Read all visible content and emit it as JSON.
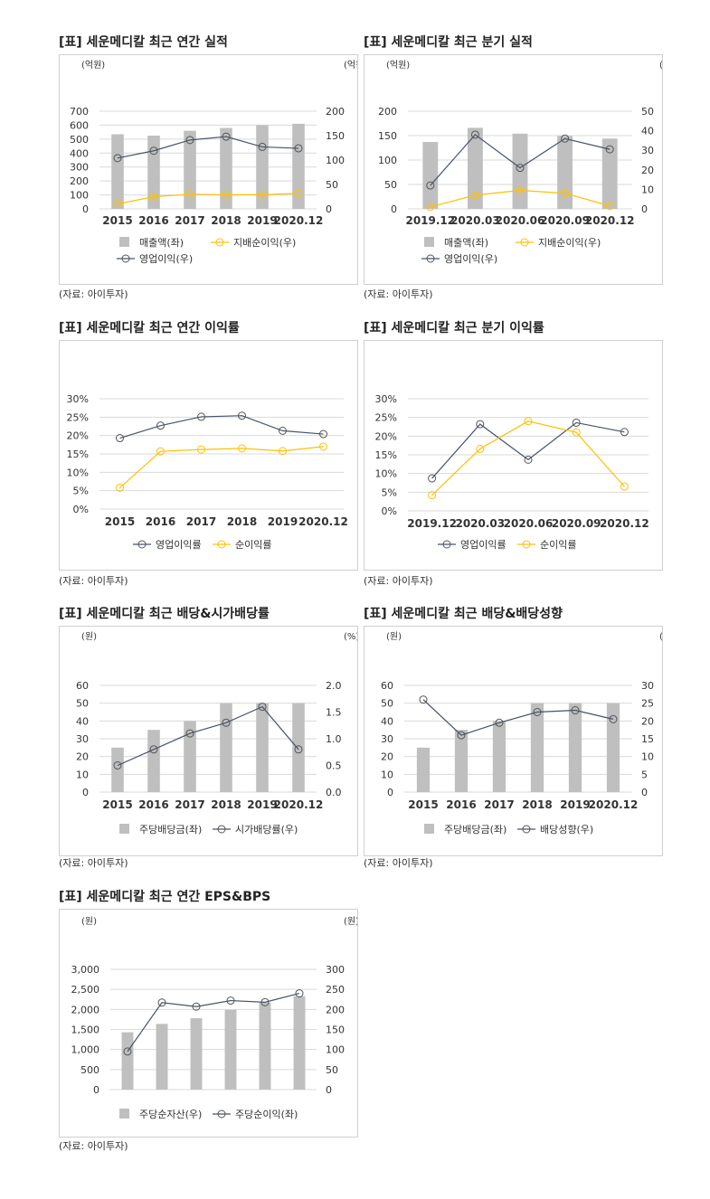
{
  "colors": {
    "bar": "#bfbfbf",
    "line_dark": "#44546a",
    "line_gold": "#ffc000",
    "grid": "#d9d9d9"
  },
  "panels": [
    {
      "title": "[표] 세운메디칼 최근 연간 실적",
      "source": "(자료: 아이투자)",
      "left_unit": "(억원)",
      "right_unit": "(억원)",
      "chart_data": {
        "type": "bar",
        "categories": [
          "2015",
          "2016",
          "2017",
          "2018",
          "2019",
          "2020.12"
        ],
        "left_axis": {
          "min": 0,
          "max": 700,
          "ticks": [
            "0",
            "100",
            "200",
            "300",
            "400",
            "500",
            "600",
            "700"
          ]
        },
        "right_axis": {
          "min": 0,
          "max": 200,
          "ticks": [
            "0",
            "50",
            "100",
            "150",
            "200"
          ]
        },
        "series": [
          {
            "name": "매출액(좌)",
            "type": "bar",
            "axis": "left",
            "values": [
              535,
              525,
              560,
              580,
              600,
              610
            ]
          },
          {
            "name": "지배순이익(우)",
            "type": "line",
            "axis": "right",
            "color": "#ffc000",
            "values": [
              10,
              25,
              30,
              29,
              29,
              32
            ]
          },
          {
            "name": "영업이익(우)",
            "type": "line",
            "axis": "right",
            "color": "#44546a",
            "values": [
              104,
              119,
              141,
              148,
              127,
              124
            ]
          }
        ],
        "legend": "bottom",
        "grid": true
      }
    },
    {
      "title": "[표] 세운메디칼 최근 분기 실적",
      "source": "(자료: 아이투자)",
      "left_unit": "(억원)",
      "right_unit": "(억원)",
      "chart_data": {
        "type": "bar",
        "categories": [
          "2019.12",
          "2020.03",
          "2020.06",
          "2020.09",
          "2020.12"
        ],
        "left_axis": {
          "min": 0,
          "max": 200,
          "ticks": [
            "0",
            "50",
            "100",
            "150",
            "200"
          ]
        },
        "right_axis": {
          "min": 0,
          "max": 50,
          "ticks": [
            "0",
            "10",
            "20",
            "30",
            "40",
            "50"
          ]
        },
        "series": [
          {
            "name": "매출액(좌)",
            "type": "bar",
            "axis": "left",
            "values": [
              137,
              166,
              154,
              149,
              144
            ]
          },
          {
            "name": "지배순이익(우)",
            "type": "line",
            "axis": "right",
            "color": "#ffc000",
            "values": [
              1,
              7,
              9.5,
              8,
              1.5
            ]
          },
          {
            "name": "영업이익(우)",
            "type": "line",
            "axis": "right",
            "color": "#44546a",
            "values": [
              12,
              38,
              21,
              36,
              30.5
            ]
          }
        ],
        "legend": "bottom",
        "grid": true
      }
    },
    {
      "title": "[표] 세운메디칼 최근 연간 이익률",
      "source": "(자료: 아이투자)",
      "left_unit": "",
      "right_unit": "",
      "chart_data": {
        "type": "line",
        "categories": [
          "2015",
          "2016",
          "2017",
          "2018",
          "2019",
          "2020.12"
        ],
        "left_axis": {
          "min": 0,
          "max": 30,
          "ticks": [
            "0%",
            "5%",
            "10%",
            "15%",
            "20%",
            "25%",
            "30%"
          ]
        },
        "series": [
          {
            "name": "영업이익률",
            "type": "line",
            "axis": "left",
            "color": "#44546a",
            "values": [
              19.3,
              22.7,
              25.1,
              25.4,
              21.3,
              20.4
            ]
          },
          {
            "name": "순이익률",
            "type": "line",
            "axis": "left",
            "color": "#ffc000",
            "values": [
              5.8,
              15.7,
              16.2,
              16.5,
              15.8,
              17.0
            ]
          }
        ],
        "legend": "bottom",
        "grid": true
      }
    },
    {
      "title": "[표] 세운메디칼 최근 분기 이익률",
      "source": "(자료: 아이투자)",
      "left_unit": "",
      "right_unit": "",
      "chart_data": {
        "type": "line",
        "categories": [
          "2019.12",
          "2020.03",
          "2020.06",
          "2020.09",
          "2020.12"
        ],
        "left_axis": {
          "min": 0,
          "max": 30,
          "ticks": [
            "0%",
            "5%",
            "10%",
            "15%",
            "20%",
            "25%",
            "30%"
          ]
        },
        "series": [
          {
            "name": "영업이익률",
            "type": "line",
            "axis": "left",
            "color": "#44546a",
            "values": [
              8.7,
              23.2,
              13.7,
              23.6,
              21.1
            ]
          },
          {
            "name": "순이익률",
            "type": "line",
            "axis": "left",
            "color": "#ffc000",
            "values": [
              4.2,
              16.6,
              24.0,
              21.0,
              6.5
            ]
          }
        ],
        "legend": "bottom",
        "grid": true
      }
    },
    {
      "title": "[표] 세운메디칼 최근 배당&시가배당률",
      "source": "(자료: 아이투자)",
      "left_unit": "(원)",
      "right_unit": "(%)",
      "chart_data": {
        "type": "bar",
        "categories": [
          "2015",
          "2016",
          "2017",
          "2018",
          "2019",
          "2020.12"
        ],
        "left_axis": {
          "min": 0,
          "max": 60,
          "ticks": [
            "0",
            "10",
            "20",
            "30",
            "40",
            "50",
            "60"
          ]
        },
        "right_axis": {
          "min": 0,
          "max": 2,
          "ticks": [
            "0.0",
            "0.5",
            "1.0",
            "1.5",
            "2.0"
          ]
        },
        "series": [
          {
            "name": "주당배당금(좌)",
            "type": "bar",
            "axis": "left",
            "values": [
              25,
              35,
              40,
              50,
              50,
              50
            ]
          },
          {
            "name": "시가배당률(우)",
            "type": "line",
            "axis": "right",
            "color": "#44546a",
            "values": [
              0.5,
              0.8,
              1.1,
              1.3,
              1.6,
              0.8
            ]
          }
        ],
        "legend": "bottom",
        "grid": true
      }
    },
    {
      "title": "[표] 세운메디칼 최근 배당&배당성향",
      "source": "(자료: 아이투자)",
      "left_unit": "(원)",
      "right_unit": "(%)",
      "chart_data": {
        "type": "bar",
        "categories": [
          "2015",
          "2016",
          "2017",
          "2018",
          "2019",
          "2020.12"
        ],
        "left_axis": {
          "min": 0,
          "max": 60,
          "ticks": [
            "0",
            "10",
            "20",
            "30",
            "40",
            "50",
            "60"
          ]
        },
        "right_axis": {
          "min": 0,
          "max": 30,
          "ticks": [
            "0",
            "5",
            "10",
            "15",
            "20",
            "25",
            "30"
          ]
        },
        "series": [
          {
            "name": "주당배당금(좌)",
            "type": "bar",
            "axis": "left",
            "values": [
              25,
              35,
              40,
              50,
              50,
              50
            ]
          },
          {
            "name": "배당성향(우)",
            "type": "line",
            "axis": "right",
            "color": "#44546a",
            "values": [
              26,
              16,
              19.5,
              22.5,
              23,
              20.5
            ]
          }
        ],
        "legend": "bottom",
        "grid": true
      }
    },
    {
      "title": "[표] 세운메디칼 최근 연간 EPS&BPS",
      "source": "(자료: 아이투자)",
      "left_unit": "(원)",
      "right_unit": "(원)",
      "chart_data": {
        "type": "bar",
        "categories": [
          "",
          "",
          "",
          "",
          "",
          ""
        ],
        "left_axis": {
          "min": 0,
          "max": 3000,
          "ticks": [
            "0",
            "500",
            "1,000",
            "1,500",
            "2,000",
            "2,500",
            "3,000"
          ]
        },
        "right_axis": {
          "min": 0,
          "max": 300,
          "ticks": [
            "0",
            "50",
            "100",
            "150",
            "200",
            "250",
            "300"
          ]
        },
        "series": [
          {
            "name": "주당순자산(우)",
            "type": "bar",
            "axis": "left",
            "values": [
              1430,
              1640,
              1780,
              1990,
              2170,
              2330
            ]
          },
          {
            "name": "주당순이익(좌)",
            "type": "line",
            "axis": "right",
            "color": "#44546a",
            "values": [
              95,
              217,
              207,
              222,
              218,
              240
            ]
          }
        ],
        "legend": "bottom",
        "grid": true
      }
    }
  ]
}
